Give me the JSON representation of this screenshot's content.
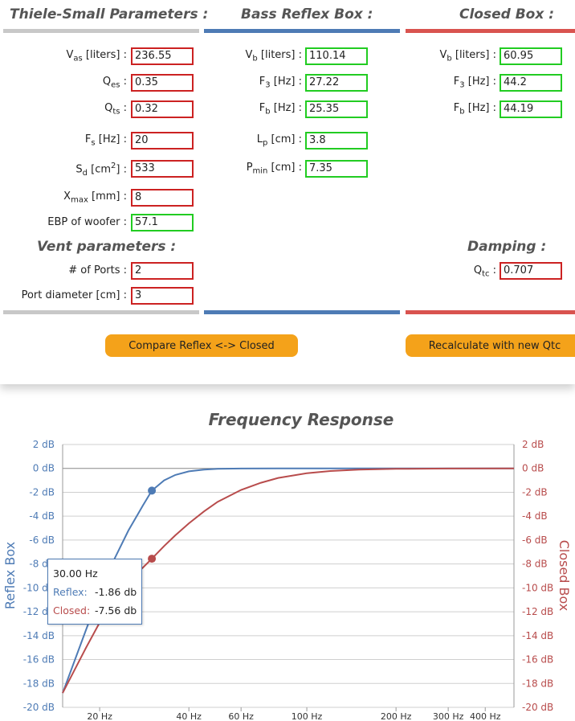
{
  "sections": {
    "ts_title": "Thiele-Small Parameters :",
    "reflex_title": "Bass Reflex Box :",
    "closed_title": "Closed Box :",
    "vent_title": "Vent parameters :",
    "damping_title": "Damping :"
  },
  "colors": {
    "input_border": "#cc2222",
    "output_border": "#22cc22",
    "reflex": "#4e7bb5",
    "closed": "#b84c4c",
    "ts_bar": "#c8c8c8",
    "button": "#f4a21a"
  },
  "ts": {
    "vas": {
      "label_main": "V",
      "label_sub": "as",
      "label_rest": " [liters] :",
      "value": "236.55"
    },
    "qes": {
      "label_main": "Q",
      "label_sub": "es",
      "label_rest": " :",
      "value": "0.35"
    },
    "qts": {
      "label_main": "Q",
      "label_sub": "ts",
      "label_rest": " :",
      "value": "0.32"
    },
    "fs": {
      "label_main": "F",
      "label_sub": "s",
      "label_rest": " [Hz] :",
      "value": "20"
    },
    "sd": {
      "label_main": "S",
      "label_sub": "d",
      "label_rest": " [cm",
      "label_sup": "2",
      "label_end": "] :",
      "value": "533"
    },
    "xmax": {
      "label_main": "X",
      "label_sub": "max",
      "label_rest": " [mm] :",
      "value": "8"
    },
    "ebp": {
      "label": "EBP of woofer :",
      "value": "57.1"
    }
  },
  "vent": {
    "ports": {
      "label": "# of Ports :",
      "value": "2"
    },
    "diameter": {
      "label": "Port diameter [cm] :",
      "value": "3"
    }
  },
  "reflex": {
    "vb": {
      "label_main": "V",
      "label_sub": "b",
      "label_rest": " [liters] :",
      "value": "110.14"
    },
    "f3": {
      "label_main": "F",
      "label_sub": "3",
      "label_rest": " [Hz] :",
      "value": "27.22"
    },
    "fb": {
      "label_main": "F",
      "label_sub": "b",
      "label_rest": " [Hz] :",
      "value": "25.35"
    },
    "lp": {
      "label_main": "L",
      "label_sub": "p",
      "label_rest": " [cm] :",
      "value": "3.8"
    },
    "pmin": {
      "label_main": "P",
      "label_sub": "min",
      "label_rest": " [cm] :",
      "value": "7.35"
    }
  },
  "closed": {
    "vb": {
      "label_main": "V",
      "label_sub": "b",
      "label_rest": " [liters] :",
      "value": "60.95"
    },
    "f3": {
      "label_main": "F",
      "label_sub": "3",
      "label_rest": " [Hz] :",
      "value": "44.2"
    },
    "fb": {
      "label_main": "F",
      "label_sub": "b",
      "label_rest": " [Hz] :",
      "value": "44.19"
    }
  },
  "damping": {
    "qtc": {
      "label_main": "Q",
      "label_sub": "tc",
      "label_rest": " :",
      "value": "0.707"
    }
  },
  "buttons": {
    "compare": "Compare Reflex <-> Closed",
    "recalc": "Recalculate with new Qtc"
  },
  "tooltip": {
    "freq": "30.00 Hz",
    "reflex_label": "Reflex:",
    "reflex_value": "-1.86 db",
    "closed_label": "Closed:",
    "closed_value": "-7.56 db"
  },
  "chart_data": {
    "type": "line",
    "title": "Frequency Response",
    "ylabel_left": "Reflex Box",
    "ylabel_right": "Closed Box",
    "ylim": [
      -20,
      2
    ],
    "y_ticks": [
      2,
      0,
      -2,
      -4,
      -6,
      -8,
      -10,
      -12,
      -14,
      -16,
      -18,
      -20
    ],
    "y_tick_labels": [
      "2 dB",
      "0 dB",
      "-2 dB",
      "-4 dB",
      "-6 dB",
      "-8 dB",
      "-10 dB",
      "-12 dB",
      "-14 dB",
      "-16 dB",
      "-18 dB",
      "-20 dB"
    ],
    "x_scale": "log",
    "xlim": [
      15,
      500
    ],
    "x_ticks": [
      20,
      40,
      60,
      100,
      200,
      300,
      400
    ],
    "x_tick_labels": [
      "20 Hz",
      "40 Hz",
      "60 Hz",
      "100 Hz",
      "200 Hz",
      "300 Hz",
      "400 Hz"
    ],
    "grid": true,
    "series": [
      {
        "name": "Reflex",
        "color": "#4e7bb5",
        "x": [
          15,
          18,
          20,
          22,
          25,
          28,
          30,
          33,
          36,
          40,
          45,
          50,
          60,
          80,
          100,
          150,
          200,
          300,
          500
        ],
        "y": [
          -18.8,
          -13.5,
          -10.5,
          -8.0,
          -5.2,
          -3.1,
          -1.86,
          -1.0,
          -0.55,
          -0.25,
          -0.1,
          -0.04,
          -0.01,
          0,
          0,
          0,
          0,
          0,
          0
        ]
      },
      {
        "name": "Closed",
        "color": "#b84c4c",
        "x": [
          15,
          18,
          20,
          22,
          25,
          28,
          30,
          33,
          36,
          40,
          45,
          50,
          60,
          70,
          80,
          100,
          120,
          150,
          200,
          300,
          500
        ],
        "y": [
          -18.8,
          -15.0,
          -12.9,
          -11.3,
          -9.4,
          -8.3,
          -7.56,
          -6.5,
          -5.6,
          -4.6,
          -3.6,
          -2.8,
          -1.8,
          -1.2,
          -0.8,
          -0.4,
          -0.22,
          -0.1,
          -0.04,
          -0.01,
          0
        ]
      }
    ],
    "highlight_x": 30
  }
}
